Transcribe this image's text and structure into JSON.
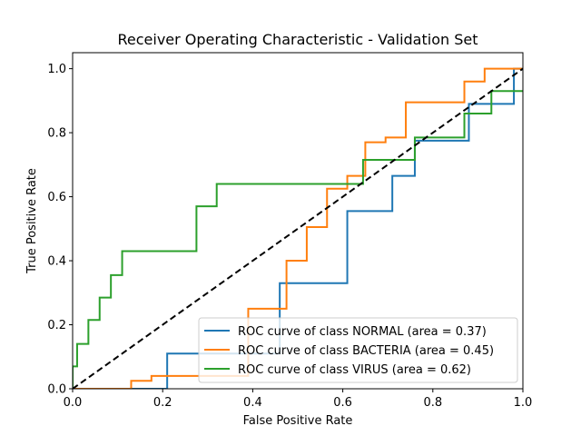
{
  "chart_data": {
    "type": "line",
    "title": "Receiver Operating Characteristic - Validation Set",
    "xlabel": "False Positive Rate",
    "ylabel": "True Positive Rate",
    "xlim": [
      0.0,
      1.0
    ],
    "ylim": [
      0.0,
      1.05
    ],
    "xticks": [
      0.0,
      0.2,
      0.4,
      0.6,
      0.8,
      1.0
    ],
    "yticks": [
      0.0,
      0.2,
      0.4,
      0.6,
      0.8,
      1.0
    ],
    "xtick_labels": [
      "0.0",
      "0.2",
      "0.4",
      "0.6",
      "0.8",
      "1.0"
    ],
    "ytick_labels": [
      "0.0",
      "0.2",
      "0.4",
      "0.6",
      "0.8",
      "1.0"
    ],
    "legend_position": "lower-right",
    "grid": false,
    "series": [
      {
        "name": "ROC curve of class NORMAL (area = 0.37)",
        "color": "#1f77b4",
        "x": [
          0.0,
          0.21,
          0.21,
          0.46,
          0.46,
          0.61,
          0.61,
          0.71,
          0.71,
          0.76,
          0.76,
          0.88,
          0.88,
          0.98,
          0.98,
          1.0
        ],
        "y": [
          0.0,
          0.0,
          0.11,
          0.11,
          0.33,
          0.33,
          0.555,
          0.555,
          0.665,
          0.665,
          0.775,
          0.775,
          0.89,
          0.89,
          1.0,
          1.0
        ]
      },
      {
        "name": "ROC curve of class BACTERIA (area = 0.45)",
        "color": "#ff7f0e",
        "x": [
          0.0,
          0.13,
          0.13,
          0.175,
          0.175,
          0.39,
          0.39,
          0.475,
          0.475,
          0.52,
          0.52,
          0.565,
          0.565,
          0.61,
          0.61,
          0.65,
          0.65,
          0.695,
          0.695,
          0.74,
          0.74,
          0.87,
          0.87,
          0.915,
          0.915,
          1.0
        ],
        "y": [
          0.0,
          0.0,
          0.025,
          0.025,
          0.04,
          0.04,
          0.25,
          0.25,
          0.4,
          0.4,
          0.505,
          0.505,
          0.625,
          0.625,
          0.665,
          0.665,
          0.77,
          0.77,
          0.785,
          0.785,
          0.895,
          0.895,
          0.96,
          0.96,
          1.0,
          1.0
        ]
      },
      {
        "name": "ROC curve of class VIRUS (area = 0.62)",
        "color": "#2ca02c",
        "x": [
          0.0,
          0.0,
          0.01,
          0.01,
          0.035,
          0.035,
          0.06,
          0.06,
          0.085,
          0.085,
          0.11,
          0.11,
          0.275,
          0.275,
          0.32,
          0.32,
          0.645,
          0.645,
          0.76,
          0.76,
          0.87,
          0.87,
          0.93,
          0.93,
          1.0
        ],
        "y": [
          0.0,
          0.07,
          0.07,
          0.14,
          0.14,
          0.215,
          0.215,
          0.285,
          0.285,
          0.355,
          0.355,
          0.43,
          0.43,
          0.57,
          0.57,
          0.64,
          0.64,
          0.715,
          0.715,
          0.785,
          0.785,
          0.86,
          0.86,
          0.93,
          0.93
        ]
      }
    ],
    "reference_line": {
      "x": [
        0.0,
        1.0
      ],
      "y": [
        0.0,
        1.0
      ],
      "color": "#000000",
      "style": "dashed"
    }
  }
}
